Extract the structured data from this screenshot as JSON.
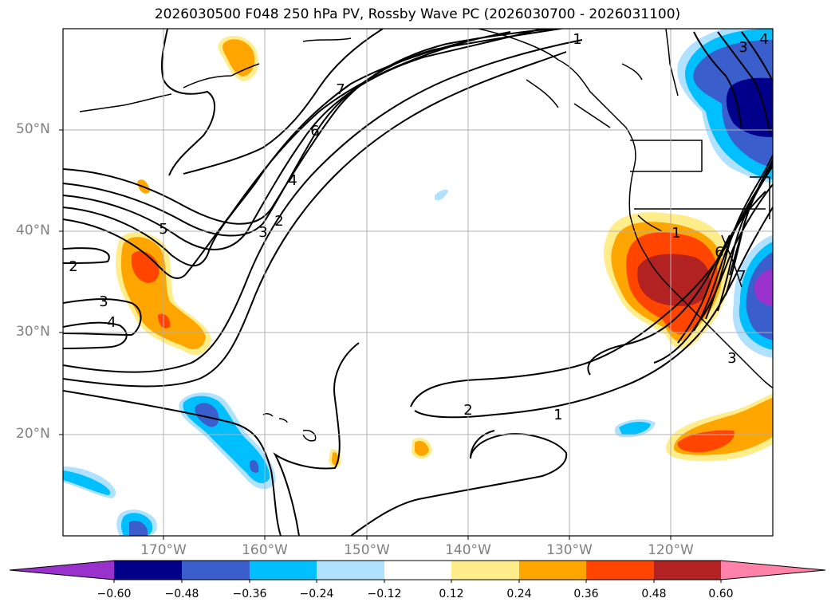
{
  "title": "2026030500 F048 250 hPa PV, Rossby Wave PC (2026030700 - 2026031100)",
  "lat_labels": [
    "50°N",
    "40°N",
    "30°N",
    "20°N"
  ],
  "lon_labels": [
    "170°W",
    "160°W",
    "150°W",
    "140°W",
    "130°W",
    "120°W"
  ],
  "contour_labels": [
    "1",
    "1",
    "2",
    "2",
    "2",
    "3",
    "3",
    "3",
    "4",
    "4",
    "5",
    "6",
    "7",
    "1",
    "6",
    "7",
    "3",
    "4"
  ],
  "colorbar": {
    "ticks": [
      "−0.60",
      "−0.48",
      "−0.36",
      "−0.24",
      "−0.12",
      "0.12",
      "0.24",
      "0.36",
      "0.48",
      "0.60"
    ],
    "colors": [
      "#9932CC",
      "#00008B",
      "#3A5FCD",
      "#00BFFF",
      "#B0E2FF",
      "#FFFFFF",
      "#FFEC8B",
      "#FFA500",
      "#FF4500",
      "#B22222",
      "#FF82AB"
    ]
  },
  "grid": true
}
